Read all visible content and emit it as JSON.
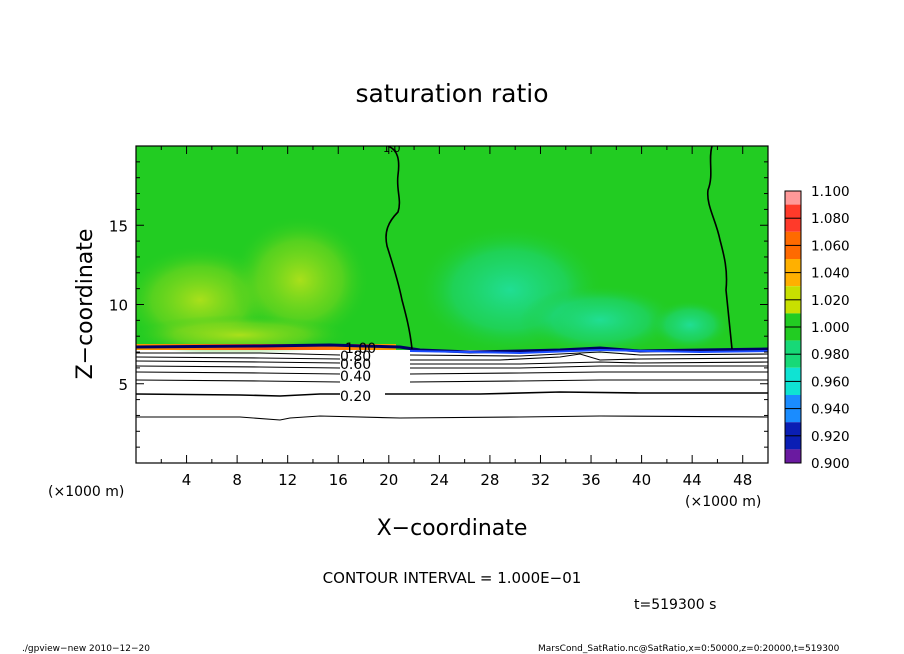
{
  "title": "saturation ratio",
  "xlabel": "X−coordinate",
  "ylabel": "Z−coordinate",
  "x_unit_left": "(×1000 m)",
  "x_unit_right": "(×1000 m)",
  "contour_interval": "CONTOUR INTERVAL = 1.000E−01",
  "time_label": "t=519300 s",
  "footer_left": "./gpview−new   2010−12−20",
  "footer_right": "MarsCond_SatRatio.nc@SatRatio,x=0:50000,z=0:20000,t=519300",
  "chart_data": {
    "type": "heatmap",
    "title": "saturation ratio",
    "xlabel": "X−coordinate",
    "ylabel": "Z−coordinate",
    "xlim": [
      0,
      50
    ],
    "ylim": [
      0,
      20
    ],
    "x_ticks": [
      4,
      8,
      12,
      16,
      20,
      24,
      28,
      32,
      36,
      40,
      44,
      48
    ],
    "y_ticks": [
      5,
      10,
      15
    ],
    "colorbar": {
      "labels": [
        "1.100",
        "1.080",
        "1.060",
        "1.040",
        "1.020",
        "1.000",
        "0.980",
        "0.960",
        "0.940",
        "0.920",
        "0.900"
      ],
      "colors": [
        "#ff9999",
        "#ff3a2a",
        "#ff6a00",
        "#ffb000",
        "#c8e000",
        "#22cc22",
        "#17d977",
        "#0fe3d3",
        "#1a8cff",
        "#0a1eb4",
        "#6a1aa0"
      ]
    },
    "contour_labels": [
      {
        "text": "1.00",
        "x": 18.7,
        "z": 7.3
      },
      {
        "text": "0.80",
        "x": 17.8,
        "z": 6.8
      },
      {
        "text": "0.60",
        "x": 17.8,
        "z": 6.4
      },
      {
        "text": "0.40",
        "x": 17.8,
        "z": 5.5
      },
      {
        "text": "0.20",
        "x": 17.8,
        "z": 4.2
      }
    ]
  }
}
